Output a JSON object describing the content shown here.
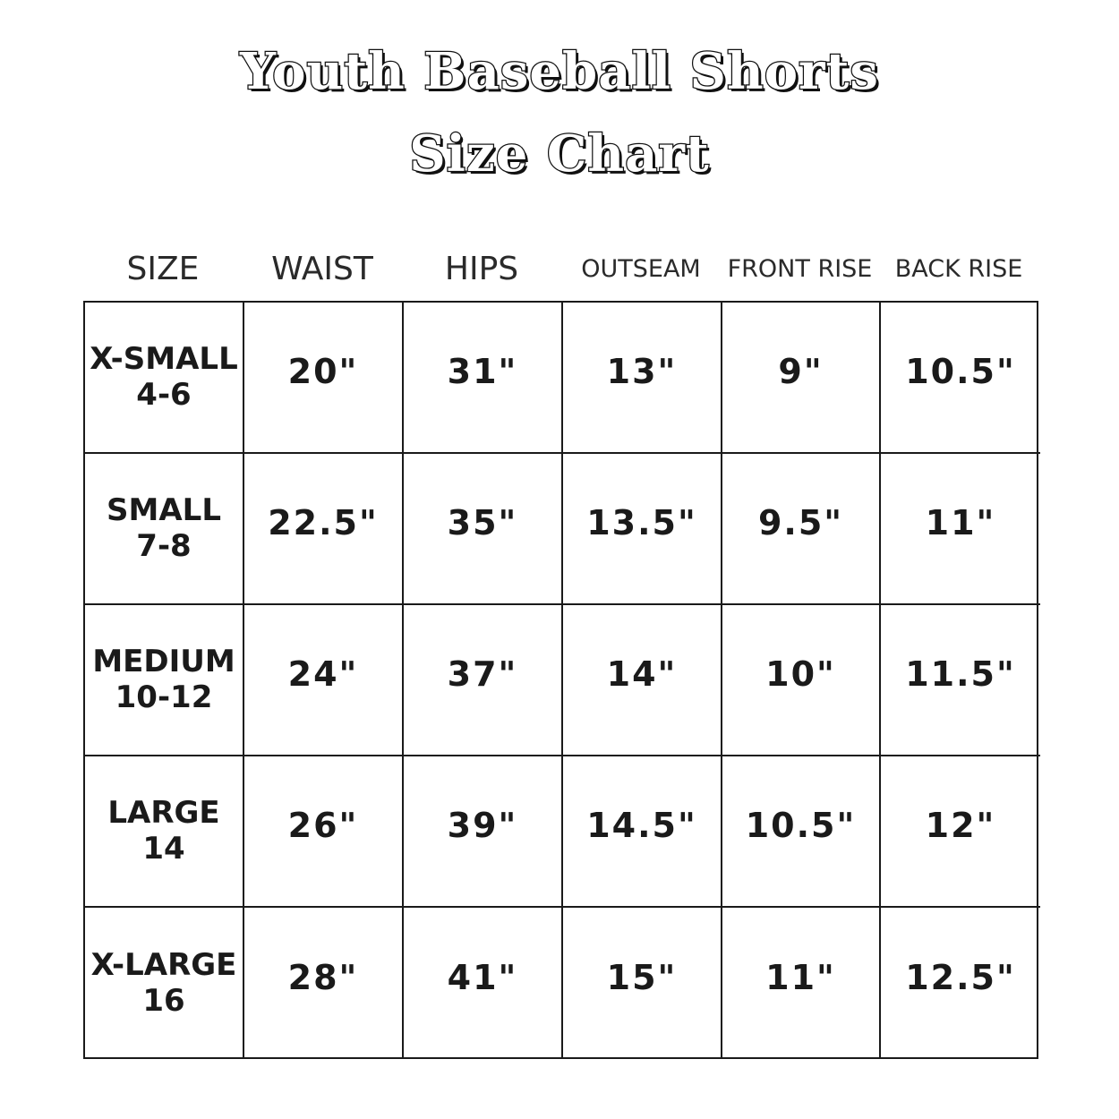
{
  "title": {
    "line1": "Youth Baseball Shorts",
    "line2": "Size Chart"
  },
  "columns": [
    "SIZE",
    "WAIST",
    "HIPS",
    "OUTSEAM",
    "FRONT RISE",
    "BACK RISE"
  ],
  "rows": [
    {
      "size": "X-SMALL",
      "range": "4-6",
      "waist": "20\"",
      "hips": "31\"",
      "outseam": "13\"",
      "front_rise": "9\"",
      "back_rise": "10.5\""
    },
    {
      "size": "SMALL",
      "range": "7-8",
      "waist": "22.5\"",
      "hips": "35\"",
      "outseam": "13.5\"",
      "front_rise": "9.5\"",
      "back_rise": "11\""
    },
    {
      "size": "MEDIUM",
      "range": "10-12",
      "waist": "24\"",
      "hips": "37\"",
      "outseam": "14\"",
      "front_rise": "10\"",
      "back_rise": "11.5\""
    },
    {
      "size": "LARGE",
      "range": "14",
      "waist": "26\"",
      "hips": "39\"",
      "outseam": "14.5\"",
      "front_rise": "10.5\"",
      "back_rise": "12\""
    },
    {
      "size": "X-LARGE",
      "range": "16",
      "waist": "28\"",
      "hips": "41\"",
      "outseam": "15\"",
      "front_rise": "11\"",
      "back_rise": "12.5\""
    }
  ]
}
